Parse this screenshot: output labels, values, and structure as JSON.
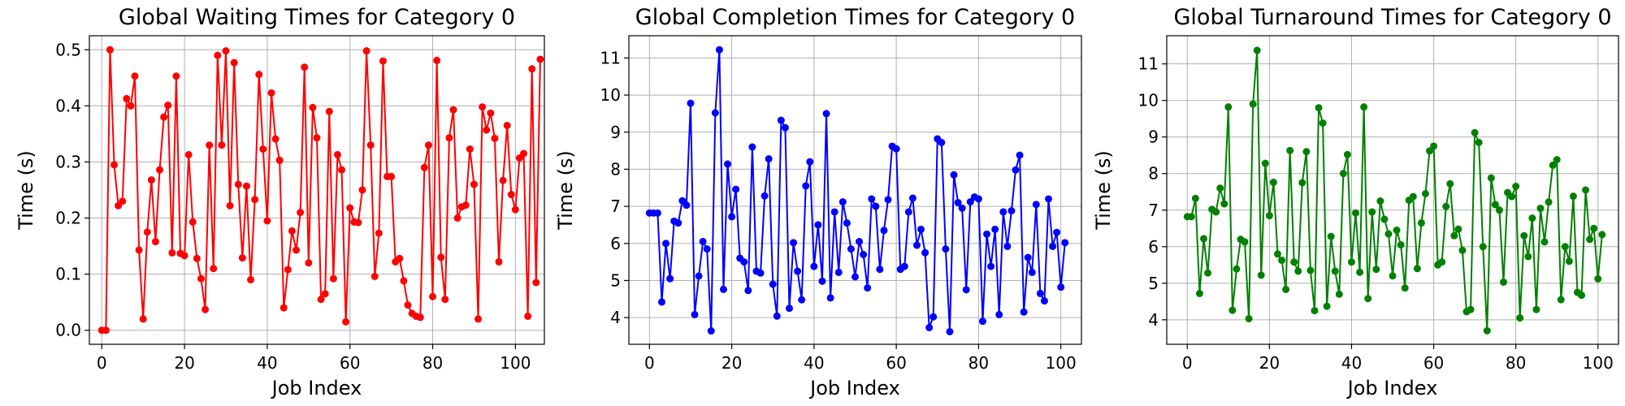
{
  "chart_data": [
    {
      "type": "line",
      "title": "Global Waiting Times for Category 0",
      "xlabel": "Job Index",
      "ylabel": "Time (s)",
      "color": "#ff0000",
      "xlim": [
        -3,
        107
      ],
      "ylim": [
        -0.025,
        0.525
      ],
      "xticks": [
        0,
        20,
        40,
        60,
        80,
        100
      ],
      "yticks": [
        0.0,
        0.1,
        0.2,
        0.3,
        0.4,
        0.5
      ],
      "tick_decimals": 1,
      "grid": true,
      "series": [
        {
          "values": [
            0.0,
            0.0,
            0.5,
            0.295,
            0.222,
            0.23,
            0.413,
            0.4,
            0.453,
            0.143,
            0.02,
            0.175,
            0.268,
            0.158,
            0.286,
            0.38,
            0.401,
            0.138,
            0.453,
            0.137,
            0.133,
            0.313,
            0.193,
            0.128,
            0.092,
            0.037,
            0.33,
            0.11,
            0.49,
            0.33,
            0.498,
            0.222,
            0.477,
            0.26,
            0.129,
            0.257,
            0.09,
            0.233,
            0.456,
            0.323,
            0.195,
            0.423,
            0.341,
            0.303,
            0.04,
            0.108,
            0.177,
            0.143,
            0.21,
            0.469,
            0.12,
            0.397,
            0.343,
            0.055,
            0.065,
            0.39,
            0.092,
            0.313,
            0.286,
            0.015,
            0.218,
            0.193,
            0.192,
            0.25,
            0.498,
            0.33,
            0.096,
            0.173,
            0.48,
            0.274,
            0.274,
            0.122,
            0.128,
            0.088,
            0.045,
            0.03,
            0.025,
            0.023,
            0.29,
            0.33,
            0.06,
            0.481,
            0.13,
            0.055,
            0.343,
            0.393,
            0.2,
            0.22,
            0.223,
            0.323,
            0.26,
            0.02,
            0.398,
            0.357,
            0.387,
            0.342,
            0.122,
            0.267,
            0.365,
            0.242,
            0.215,
            0.307,
            0.315,
            0.025,
            0.466,
            0.085,
            0.483
          ]
        }
      ]
    },
    {
      "type": "line",
      "title": "Global Completion Times for Category 0",
      "xlabel": "Job Index",
      "ylabel": "Time (s)",
      "color": "#0000ff",
      "xlim": [
        -5,
        105
      ],
      "ylim": [
        3.28,
        11.6
      ],
      "xticks": [
        0,
        20,
        40,
        60,
        80,
        100
      ],
      "yticks": [
        4,
        5,
        6,
        7,
        8,
        9,
        10,
        11
      ],
      "tick_decimals": 0,
      "grid": true,
      "series": [
        {
          "values": [
            6.82,
            6.82,
            6.82,
            4.42,
            6.0,
            5.05,
            6.6,
            6.55,
            7.15,
            7.03,
            9.78,
            4.08,
            5.12,
            6.05,
            5.85,
            3.64,
            9.52,
            11.22,
            4.76,
            8.14,
            6.72,
            7.46,
            5.6,
            5.5,
            4.73,
            8.6,
            5.25,
            5.2,
            7.28,
            8.28,
            4.9,
            4.04,
            9.32,
            9.12,
            4.25,
            6.02,
            5.25,
            4.48,
            7.55,
            8.2,
            5.38,
            6.5,
            4.98,
            9.5,
            4.53,
            6.85,
            5.22,
            7.12,
            6.55,
            5.85,
            5.1,
            6.05,
            5.7,
            4.8,
            7.2,
            7.0,
            5.3,
            6.35,
            7.18,
            8.62,
            8.55,
            5.3,
            5.38,
            6.85,
            7.22,
            5.95,
            6.38,
            5.75,
            3.73,
            4.02,
            8.82,
            8.72,
            5.85,
            3.62,
            7.85,
            7.1,
            6.95,
            4.75,
            7.12,
            7.25,
            7.2,
            3.9,
            6.25,
            5.38,
            6.38,
            4.08,
            6.85,
            5.92,
            6.88,
            7.98,
            8.38,
            4.15,
            5.62,
            5.22,
            7.05,
            4.65,
            4.45,
            7.2,
            5.92,
            6.3,
            4.82,
            6.02
          ]
        }
      ]
    },
    {
      "type": "line",
      "title": "Global Turnaround Times for Category 0",
      "xlabel": "Job Index",
      "ylabel": "Time (s)",
      "color": "#008000",
      "xlim": [
        -5,
        105
      ],
      "ylim": [
        3.33,
        11.77
      ],
      "xticks": [
        0,
        20,
        40,
        60,
        80,
        100
      ],
      "yticks": [
        4,
        5,
        6,
        7,
        8,
        9,
        10,
        11
      ],
      "tick_decimals": 0,
      "grid": true,
      "series": [
        {
          "values": [
            6.82,
            6.82,
            7.32,
            4.72,
            6.22,
            5.28,
            7.02,
            6.95,
            7.6,
            7.17,
            9.82,
            4.26,
            5.39,
            6.2,
            6.13,
            4.03,
            9.9,
            11.37,
            5.22,
            8.28,
            6.85,
            7.76,
            5.8,
            5.63,
            4.83,
            8.63,
            5.58,
            5.33,
            7.75,
            8.6,
            5.35,
            4.25,
            9.8,
            9.38,
            4.37,
            6.28,
            5.33,
            4.7,
            8.0,
            8.52,
            5.58,
            6.92,
            5.3,
            9.82,
            4.58,
            6.95,
            5.38,
            7.25,
            6.75,
            6.35,
            5.2,
            6.45,
            6.05,
            4.87,
            7.27,
            7.37,
            5.4,
            6.65,
            7.45,
            8.62,
            8.75,
            5.5,
            5.58,
            7.1,
            7.72,
            6.3,
            6.48,
            5.9,
            4.22,
            4.28,
            9.12,
            8.85,
            6.0,
            3.7,
            7.88,
            7.15,
            7.0,
            5.03,
            7.48,
            7.37,
            7.65,
            4.05,
            6.3,
            5.73,
            6.78,
            4.28,
            7.05,
            6.13,
            7.22,
            8.23,
            8.38,
            4.55,
            6.0,
            5.6,
            7.38,
            4.75,
            4.67,
            7.55,
            6.2,
            6.5,
            5.12,
            6.33
          ]
        }
      ]
    }
  ]
}
